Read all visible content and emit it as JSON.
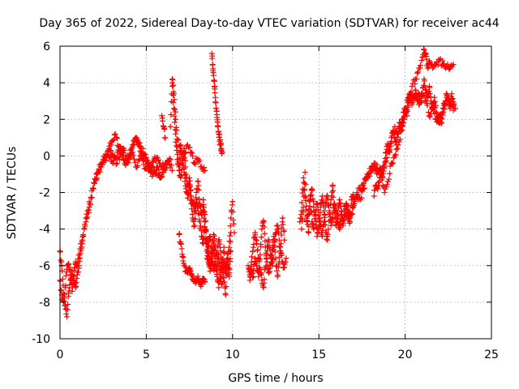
{
  "chart_data": {
    "type": "scatter",
    "title": "Day 365 of 2022, Sidereal Day-to-day VTEC variation (SDTVAR) for receiver ac44",
    "xlabel": "GPS time / hours",
    "ylabel": "SDTVAR / TECUs",
    "xlim": [
      0,
      25
    ],
    "ylim": [
      -10,
      6
    ],
    "x_ticks": [
      0,
      5,
      10,
      15,
      20,
      25
    ],
    "y_ticks": [
      -10,
      -8,
      -6,
      -4,
      -2,
      0,
      2,
      4,
      6
    ],
    "x_tick_labels": [
      "0",
      "5",
      "10",
      "15",
      "20",
      "25"
    ],
    "y_tick_labels": [
      "-10",
      "-8",
      "-6",
      "-4",
      "-2",
      "0",
      "2",
      "4",
      "6"
    ],
    "grid": true,
    "marker": "+",
    "series": [
      {
        "name": "SDTVAR",
        "color": "#ff0000",
        "segments": [
          {
            "x": [
              0.0,
              0.1,
              0.2,
              0.3,
              0.4,
              0.5,
              0.6,
              0.7,
              0.8,
              0.9,
              1.0,
              1.1,
              1.2,
              1.3,
              1.5,
              1.7,
              1.9,
              2.1,
              2.3,
              2.5,
              2.7,
              2.9,
              3.1,
              3.3,
              3.5,
              3.7,
              3.9,
              4.1,
              4.3,
              4.5,
              4.7,
              4.9,
              5.1,
              5.3,
              5.5,
              5.7,
              5.9,
              6.1,
              6.3,
              6.5
            ],
            "y": [
              -5.2,
              -6.0,
              -7.5,
              -8.2,
              -8.8,
              -7.5,
              -6.8,
              -6.3,
              -6.8,
              -7.2,
              -6.5,
              -6.0,
              -5.2,
              -4.6,
              -3.6,
              -2.8,
              -1.8,
              -1.0,
              -0.5,
              -0.2,
              0.0,
              0.3,
              0.0,
              -0.4,
              0.1,
              0.4,
              -0.3,
              0.3,
              0.8,
              0.9,
              0.2,
              -0.7,
              -0.4,
              -0.6,
              -0.9,
              -0.7,
              -1.1,
              -0.4,
              -0.3,
              -0.8
            ]
          },
          {
            "x": [
              0.0,
              0.1,
              0.2,
              0.3,
              0.4,
              0.5,
              0.6,
              0.7,
              0.8,
              0.9,
              1.0,
              1.2,
              1.4,
              1.6,
              1.8,
              2.0,
              2.2,
              2.4,
              2.6,
              2.8,
              3.0,
              3.2,
              3.4,
              3.6,
              3.8,
              4.0,
              4.2,
              4.4,
              4.6,
              4.8,
              5.0,
              5.2,
              5.4,
              5.6,
              5.8,
              6.0,
              6.2,
              6.4
            ],
            "y": [
              -6.8,
              -7.6,
              -8.0,
              -7.2,
              -6.2,
              -5.9,
              -6.5,
              -7.4,
              -6.6,
              -5.8,
              -6.0,
              -4.8,
              -4.0,
              -3.0,
              -2.3,
              -1.5,
              -0.9,
              -0.6,
              -0.2,
              0.1,
              -0.3,
              -0.1,
              0.5,
              0.2,
              -0.2,
              0.0,
              0.6,
              1.0,
              0.5,
              0.0,
              -0.3,
              -0.8,
              -1.0,
              -0.6,
              -1.2,
              -0.9,
              -0.5,
              -0.2
            ]
          },
          {
            "x": [
              2.8,
              3.0,
              3.2,
              3.4,
              3.6,
              3.8,
              4.0,
              4.2,
              4.4,
              4.6,
              4.8,
              5.0,
              5.2,
              5.4,
              5.6,
              5.8,
              6.0
            ],
            "y": [
              0.3,
              0.8,
              1.2,
              0.5,
              0.0,
              -0.5,
              -0.2,
              0.2,
              -0.6,
              -0.2,
              0.4,
              -0.1,
              -0.6,
              -0.3,
              -0.1,
              -0.4,
              -0.6
            ]
          },
          {
            "x": [
              5.9,
              6.0,
              6.1
            ],
            "y": [
              2.2,
              1.6,
              1.0
            ]
          },
          {
            "x": [
              6.4,
              6.5,
              6.6,
              6.7,
              6.8,
              6.9,
              7.0,
              7.1,
              7.2,
              7.3,
              7.4,
              7.5,
              7.6,
              7.7,
              7.8,
              7.9,
              8.0,
              8.1,
              8.2,
              8.3,
              8.4,
              8.5,
              8.6,
              8.7,
              8.8,
              8.9,
              9.0,
              9.1,
              9.2,
              9.3,
              9.4,
              9.5,
              9.6,
              9.7,
              9.8,
              9.9,
              10.0,
              10.1
            ],
            "y": [
              1.6,
              4.2,
              3.4,
              2.0,
              0.5,
              -0.8,
              -1.2,
              -0.2,
              0.4,
              -1.0,
              -1.6,
              -1.2,
              -2.2,
              -2.6,
              -3.0,
              -2.0,
              -1.4,
              -2.6,
              -3.2,
              -2.8,
              -4.0,
              -4.8,
              -5.5,
              -6.0,
              -5.2,
              -4.3,
              -5.0,
              -5.6,
              -4.6,
              -5.2,
              -6.1,
              -5.0,
              -6.3,
              -5.6,
              -5.0,
              -3.4,
              -2.5,
              -4.2
            ]
          },
          {
            "x": [
              6.5,
              6.6,
              6.7,
              6.8,
              6.9,
              7.0,
              7.1,
              7.2,
              7.3,
              7.4,
              7.5,
              7.6,
              7.7,
              7.8,
              7.9,
              8.0,
              8.1,
              8.2,
              8.3,
              8.4,
              8.5,
              8.6,
              8.7,
              8.8,
              8.9,
              9.0,
              9.1,
              9.2,
              9.3,
              9.4,
              9.5,
              9.6,
              9.7,
              9.8,
              9.9
            ],
            "y": [
              4.0,
              2.6,
              1.2,
              -0.2,
              -0.6,
              0.6,
              -0.4,
              -0.9,
              -1.8,
              -2.3,
              -1.6,
              -2.4,
              -3.4,
              -3.8,
              -2.4,
              -2.8,
              -3.6,
              -4.4,
              -4.8,
              -3.6,
              -5.2,
              -5.8,
              -6.3,
              -5.6,
              -4.8,
              -5.8,
              -6.3,
              -5.4,
              -6.5,
              -7.0,
              -5.8,
              -6.4,
              -5.9,
              -6.6,
              -4.2
            ]
          },
          {
            "x": [
              6.8,
              7.0,
              7.2,
              7.4,
              7.6,
              7.8,
              8.0,
              8.2,
              8.4
            ],
            "y": [
              0.9,
              0.3,
              -0.1,
              0.6,
              0.2,
              -0.4,
              -0.2,
              -0.6,
              -0.8
            ]
          },
          {
            "x": [
              6.9,
              7.0,
              7.1,
              7.2,
              7.3,
              7.4,
              7.5,
              7.6,
              7.7,
              7.8,
              7.9,
              8.0,
              8.1,
              8.2,
              8.3,
              8.4
            ],
            "y": [
              -4.3,
              -4.8,
              -5.5,
              -6.0,
              -6.3,
              -6.4,
              -6.2,
              -6.5,
              -6.6,
              -6.8,
              -6.9,
              -6.7,
              -6.9,
              -7.0,
              -6.7,
              -6.9
            ]
          },
          {
            "x": [
              8.3,
              8.4,
              8.5,
              8.6,
              8.7,
              8.8,
              8.9,
              9.0,
              9.1,
              9.2,
              9.3,
              9.4,
              9.5,
              9.6,
              9.7,
              9.8,
              9.9
            ],
            "y": [
              -2.4,
              -3.2,
              -4.6,
              -5.0,
              -4.4,
              -5.6,
              -6.2,
              -5.8,
              -6.6,
              -7.2,
              -6.4,
              -5.9,
              -6.9,
              -7.6,
              -5.6,
              -6.4,
              -5.2
            ]
          },
          {
            "x": [
              8.8,
              8.85,
              8.9,
              8.95,
              9.0,
              9.05,
              9.1,
              9.15,
              9.2,
              9.25,
              9.3,
              9.35,
              9.4
            ],
            "y": [
              5.6,
              5.0,
              4.4,
              3.8,
              3.2,
              2.6,
              2.1,
              1.6,
              1.2,
              0.8,
              0.6,
              0.4,
              0.2
            ]
          },
          {
            "x": [
              10.9,
              11.0,
              11.1,
              11.2,
              11.3,
              11.4,
              11.5,
              11.6,
              11.7,
              11.8,
              11.9,
              12.0,
              12.1,
              12.2,
              12.3,
              12.4,
              12.5,
              12.6,
              12.7,
              12.8,
              12.9,
              13.0,
              13.1
            ],
            "y": [
              -6.0,
              -6.5,
              -5.8,
              -5.0,
              -4.2,
              -4.8,
              -5.6,
              -6.2,
              -6.8,
              -7.2,
              -6.1,
              -5.2,
              -4.6,
              -5.4,
              -6.0,
              -5.0,
              -4.2,
              -3.8,
              -4.6,
              -5.3,
              -5.8,
              -6.1,
              -5.6
            ]
          },
          {
            "x": [
              11.0,
              11.1,
              11.2,
              11.3,
              11.4,
              11.5,
              11.6,
              11.7,
              11.8,
              11.9,
              12.0,
              12.1,
              12.2,
              12.3,
              12.4,
              12.5,
              12.6,
              12.7,
              12.8,
              12.9,
              13.0
            ],
            "y": [
              -6.8,
              -6.2,
              -6.6,
              -5.6,
              -6.0,
              -6.6,
              -5.4,
              -4.0,
              -3.6,
              -5.0,
              -5.8,
              -6.4,
              -6.0,
              -5.2,
              -4.4,
              -5.6,
              -6.6,
              -5.8,
              -4.8,
              -3.4,
              -4.6
            ]
          },
          {
            "x": [
              13.9,
              14.0,
              14.1,
              14.2,
              14.3,
              14.4,
              14.5,
              14.6,
              14.7,
              14.8,
              14.9,
              15.0,
              15.1,
              15.2,
              15.3,
              15.4,
              15.5,
              15.6,
              15.7,
              15.8,
              15.9,
              16.0,
              16.1,
              16.2,
              16.3,
              16.4,
              16.5,
              16.6,
              16.7,
              16.8,
              16.9,
              17.0,
              17.1
            ],
            "y": [
              -3.6,
              -3.0,
              -1.2,
              -2.2,
              -3.6,
              -3.0,
              -2.2,
              -3.6,
              -4.0,
              -3.2,
              -2.6,
              -3.4,
              -3.8,
              -4.4,
              -3.6,
              -2.6,
              -2.2,
              -3.0,
              -3.8,
              -3.4,
              -2.6,
              -3.0,
              -3.6,
              -4.0,
              -3.2,
              -3.6,
              -3.2,
              -2.8,
              -3.0,
              -3.4,
              -3.2,
              -2.8,
              -2.4
            ]
          },
          {
            "x": [
              14.0,
              14.1,
              14.2,
              14.3,
              14.4,
              14.5,
              14.6,
              14.7,
              14.8,
              14.9,
              15.0,
              15.1,
              15.2,
              15.3,
              15.4,
              15.5,
              15.6,
              15.7,
              15.8,
              15.9,
              16.0,
              16.1,
              16.2,
              16.3,
              16.4,
              16.5,
              16.6,
              16.7,
              16.8,
              16.9,
              17.0
            ],
            "y": [
              -4.0,
              -2.8,
              -0.9,
              -3.4,
              -4.2,
              -2.4,
              -1.8,
              -2.8,
              -3.2,
              -4.4,
              -4.0,
              -2.8,
              -2.2,
              -3.0,
              -4.2,
              -4.6,
              -3.2,
              -2.4,
              -1.6,
              -3.0,
              -3.8,
              -3.2,
              -2.4,
              -3.0,
              -3.8,
              -3.0,
              -2.6,
              -3.4,
              -3.6,
              -2.4,
              -2.2
            ]
          },
          {
            "x": [
              17.0,
              17.2,
              17.4,
              17.6,
              17.8,
              18.0,
              18.2,
              18.4,
              18.6,
              18.8,
              19.0,
              19.2,
              19.4,
              19.6,
              19.8,
              20.0,
              20.2,
              20.4,
              20.6,
              20.8,
              21.0,
              21.1,
              21.2,
              21.3,
              21.4,
              21.6,
              21.8,
              22.0,
              22.2,
              22.4,
              22.6,
              22.8
            ],
            "y": [
              -2.6,
              -2.0,
              -1.8,
              -1.5,
              -1.0,
              -0.8,
              -0.6,
              -0.9,
              -0.7,
              -0.5,
              0.2,
              1.0,
              1.6,
              1.2,
              2.0,
              2.6,
              3.2,
              3.8,
              4.2,
              4.8,
              5.4,
              5.8,
              5.6,
              4.8,
              5.2,
              4.8,
              5.0,
              5.2,
              5.0,
              4.9,
              4.8,
              5.0
            ]
          },
          {
            "x": [
              17.2,
              17.4,
              17.6,
              17.8,
              18.0,
              18.2,
              18.4,
              18.6,
              18.8,
              19.0,
              19.2,
              19.4,
              19.6,
              19.8,
              20.0,
              20.2,
              20.4,
              20.6,
              20.8,
              21.0,
              21.2,
              21.4,
              21.6,
              21.8,
              22.0,
              22.2,
              22.4,
              22.6,
              22.8
            ],
            "y": [
              -2.2,
              -2.4,
              -1.8,
              -1.2,
              -0.9,
              -0.4,
              -0.7,
              -1.0,
              -2.0,
              -1.4,
              -0.4,
              0.0,
              0.6,
              1.4,
              2.2,
              3.0,
              3.4,
              3.2,
              2.8,
              3.4,
              3.0,
              2.2,
              2.6,
              2.0,
              1.8,
              2.6,
              3.2,
              3.0,
              2.5
            ]
          },
          {
            "x": [
              18.2,
              18.3,
              18.4,
              18.5,
              18.6,
              18.7,
              18.8,
              18.9,
              19.0,
              19.1,
              19.2,
              19.3,
              19.4,
              19.5,
              19.6,
              19.7,
              19.8,
              19.9,
              20.0,
              20.1,
              20.2,
              20.3,
              20.4,
              20.5,
              20.6,
              20.7,
              20.8,
              20.9,
              21.0,
              21.1,
              21.2,
              21.3,
              21.4,
              21.5,
              21.6,
              21.7,
              21.8,
              21.9,
              22.0,
              22.1,
              22.2,
              22.3,
              22.4,
              22.5,
              22.6,
              22.7,
              22.8,
              22.9
            ],
            "y": [
              -2.2,
              -1.6,
              -1.8,
              -1.4,
              -0.8,
              -1.2,
              -0.6,
              0.2,
              0.6,
              0.2,
              0.8,
              1.4,
              1.0,
              0.6,
              1.2,
              1.8,
              1.4,
              2.0,
              2.6,
              2.2,
              3.0,
              3.4,
              2.8,
              3.2,
              3.6,
              3.0,
              3.4,
              3.0,
              3.4,
              4.2,
              3.6,
              3.2,
              3.8,
              3.0,
              2.6,
              3.2,
              2.4,
              2.0,
              2.2,
              1.8,
              2.4,
              2.8,
              3.4,
              3.0,
              2.6,
              3.4,
              2.8,
              2.6
            ]
          }
        ]
      }
    ]
  }
}
